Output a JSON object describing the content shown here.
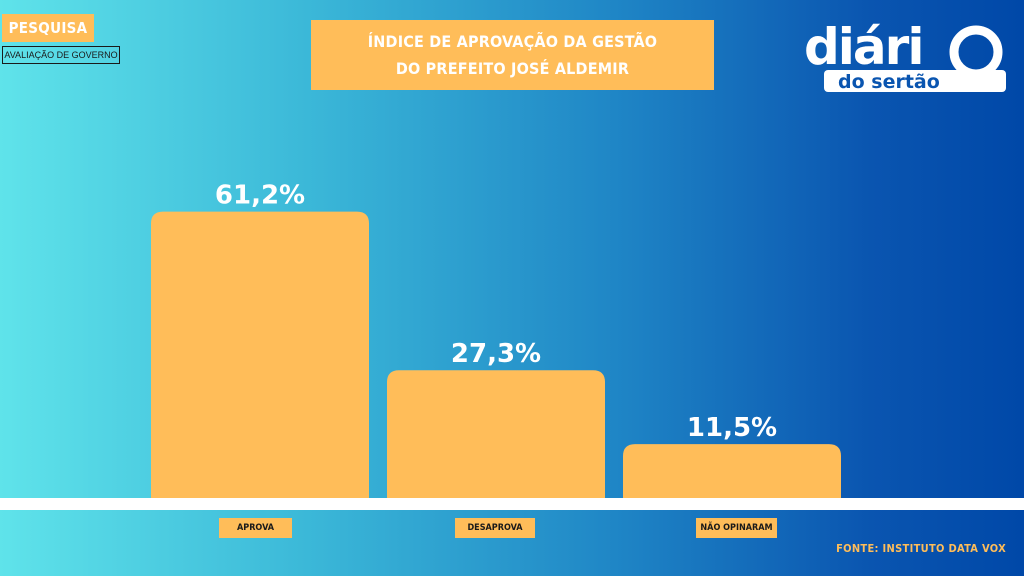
{
  "badge": {
    "label": "PESQUISA",
    "sublabel": "AVALIAÇÃO DE GOVERNO"
  },
  "header": {
    "title_line1": "ÍNDICE DE APROVAÇÃO DA GESTÃO",
    "title_line2": "DO PREFEITO JOSÉ ALDEMIR"
  },
  "logo": {
    "word1": "diári",
    "word2": "do sertão"
  },
  "source": "FONTE: INSTITUTO DATA VOX",
  "colors": {
    "bar": "#ffbd59",
    "label_bg": "#ffbd59",
    "value_text": "#ffffff",
    "background_left": "#5fe3ea",
    "background_right": "#0048a8"
  },
  "chart_data": {
    "type": "bar",
    "title": "ÍNDICE DE APROVAÇÃO DA GESTÃO DO PREFEITO JOSÉ ALDEMIR",
    "categories": [
      "APROVA",
      "DESAPROVA",
      "NÃO OPINARAM"
    ],
    "values": [
      61.2,
      27.3,
      11.5
    ],
    "value_labels": [
      "61,2%",
      "27,3%",
      "11,5%"
    ],
    "unit": "%",
    "grid": false,
    "legend": "none"
  }
}
